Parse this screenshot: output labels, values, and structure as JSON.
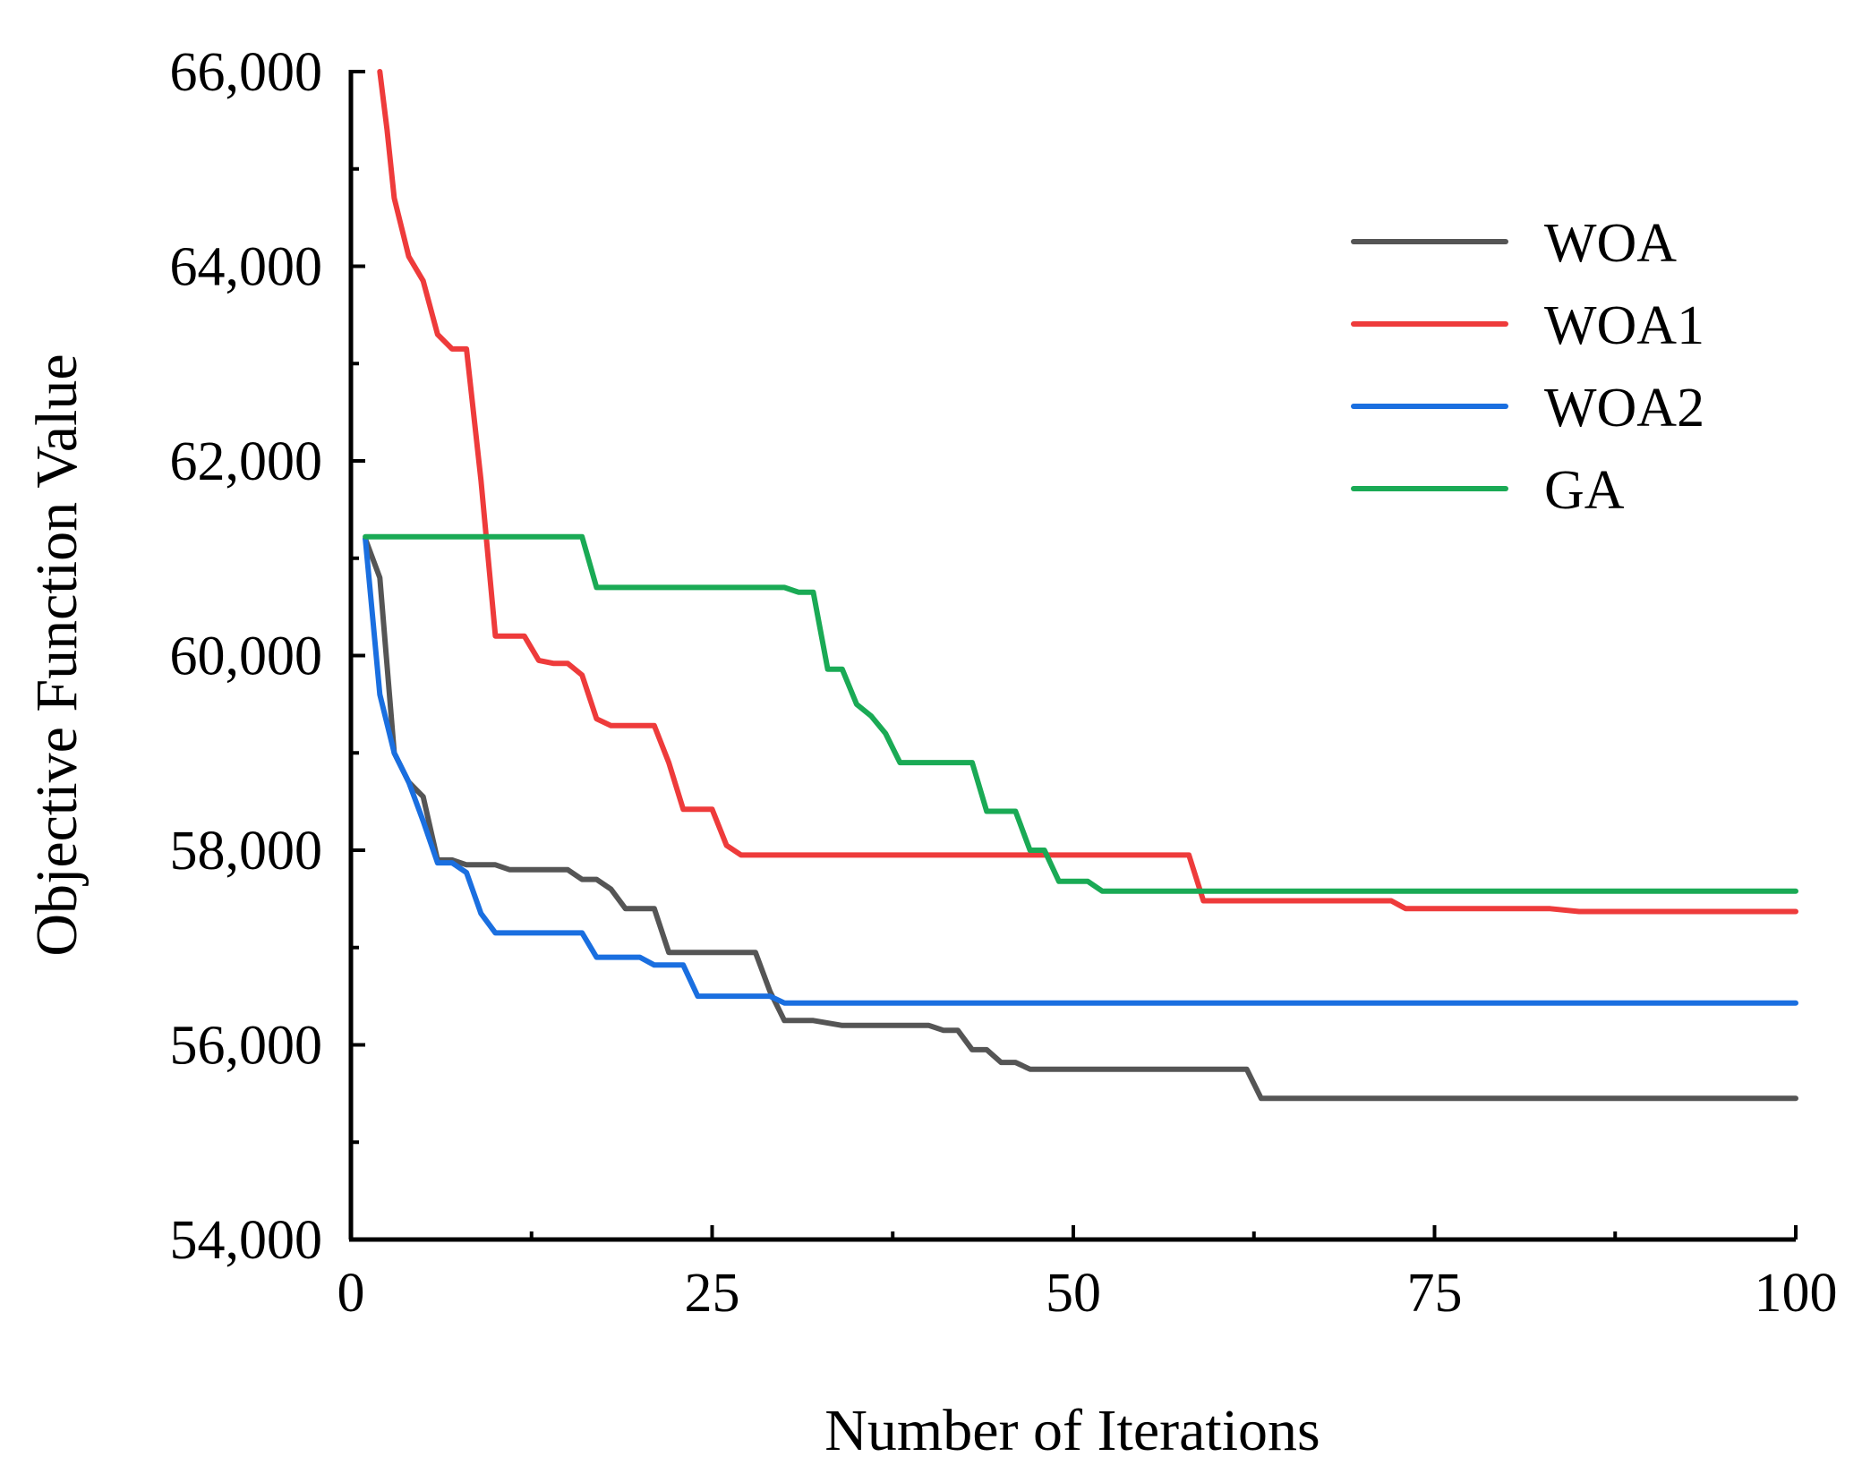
{
  "chart_data": {
    "type": "line",
    "title": "",
    "xlabel": "Number of Iterations",
    "ylabel": "Objective Function Value",
    "xlim": [
      0,
      100
    ],
    "ylim": [
      54000,
      66000
    ],
    "xticks": [
      0,
      25,
      50,
      75,
      100
    ],
    "xtick_labels": [
      "0",
      "25",
      "50",
      "75",
      "100"
    ],
    "yticks": [
      54000,
      56000,
      58000,
      60000,
      62000,
      64000,
      66000
    ],
    "ytick_labels": [
      "54,000",
      "56,000",
      "58,000",
      "60,000",
      "62,000",
      "64,000",
      "66,000"
    ],
    "legend_position": "top-right",
    "grid": false,
    "series": [
      {
        "name": "WOA",
        "color": "#555555",
        "x": [
          1,
          2,
          3,
          4,
          5,
          6,
          7,
          8,
          10,
          11,
          13,
          15,
          16,
          17,
          18,
          19,
          21,
          22,
          24,
          25,
          27,
          28,
          29,
          30,
          32,
          34,
          36,
          38,
          40,
          41,
          42,
          43,
          44,
          45,
          46,
          47,
          48,
          50,
          55,
          60,
          62,
          63,
          70,
          80,
          90,
          100
        ],
        "y": [
          61200,
          60800,
          59000,
          58700,
          58550,
          57900,
          57900,
          57850,
          57850,
          57800,
          57800,
          57800,
          57700,
          57700,
          57600,
          57400,
          57400,
          56950,
          56950,
          56950,
          56950,
          56950,
          56550,
          56250,
          56250,
          56200,
          56200,
          56200,
          56200,
          56150,
          56150,
          55950,
          55950,
          55820,
          55820,
          55750,
          55750,
          55750,
          55750,
          55750,
          55750,
          55450,
          55450,
          55450,
          55450,
          55450
        ]
      },
      {
        "name": "WOA1",
        "color": "#ee3b3b",
        "x": [
          2,
          2.5,
          3,
          4,
          5,
          6,
          7,
          8,
          9,
          10,
          11,
          12,
          13,
          14,
          15,
          16,
          17,
          18,
          19,
          20,
          21,
          22,
          23,
          24,
          25,
          26,
          27,
          30,
          40,
          50,
          57,
          58,
          59,
          60,
          65,
          70,
          72,
          73,
          75,
          80,
          83,
          85,
          90,
          100
        ],
        "y": [
          66000,
          65400,
          64700,
          64100,
          63850,
          63300,
          63150,
          63150,
          61800,
          60200,
          60200,
          60200,
          59950,
          59920,
          59920,
          59800,
          59350,
          59280,
          59280,
          59280,
          59280,
          58900,
          58420,
          58420,
          58420,
          58050,
          57950,
          57950,
          57950,
          57950,
          57950,
          57950,
          57480,
          57480,
          57480,
          57480,
          57480,
          57400,
          57400,
          57400,
          57400,
          57370,
          57370,
          57370
        ]
      },
      {
        "name": "WOA2",
        "color": "#1a6fe0",
        "x": [
          1,
          2,
          3,
          4,
          5,
          6,
          7,
          8,
          9,
          10,
          12,
          14,
          16,
          17,
          18,
          20,
          21,
          22,
          23,
          24,
          26,
          28,
          29,
          30,
          40,
          50,
          60,
          70,
          80,
          90,
          100
        ],
        "y": [
          61200,
          59600,
          59000,
          58700,
          58300,
          57870,
          57870,
          57770,
          57350,
          57150,
          57150,
          57150,
          57150,
          56900,
          56900,
          56900,
          56820,
          56820,
          56820,
          56500,
          56500,
          56500,
          56500,
          56430,
          56430,
          56430,
          56430,
          56430,
          56430,
          56430,
          56430
        ]
      },
      {
        "name": "GA",
        "color": "#1aaa55",
        "x": [
          1,
          5,
          10,
          15,
          16,
          17,
          20,
          25,
          30,
          31,
          32,
          33,
          34,
          35,
          36,
          37,
          38,
          40,
          42,
          43,
          44,
          45,
          46,
          47,
          48,
          49,
          50,
          51,
          52,
          55,
          60,
          65,
          70,
          80,
          90,
          100
        ],
        "y": [
          61220,
          61220,
          61220,
          61220,
          61220,
          60700,
          60700,
          60700,
          60700,
          60650,
          60650,
          59860,
          59860,
          59500,
          59380,
          59200,
          58900,
          58900,
          58900,
          58900,
          58400,
          58400,
          58400,
          58000,
          58000,
          57680,
          57680,
          57680,
          57580,
          57580,
          57580,
          57580,
          57580,
          57580,
          57580,
          57580
        ]
      }
    ]
  }
}
